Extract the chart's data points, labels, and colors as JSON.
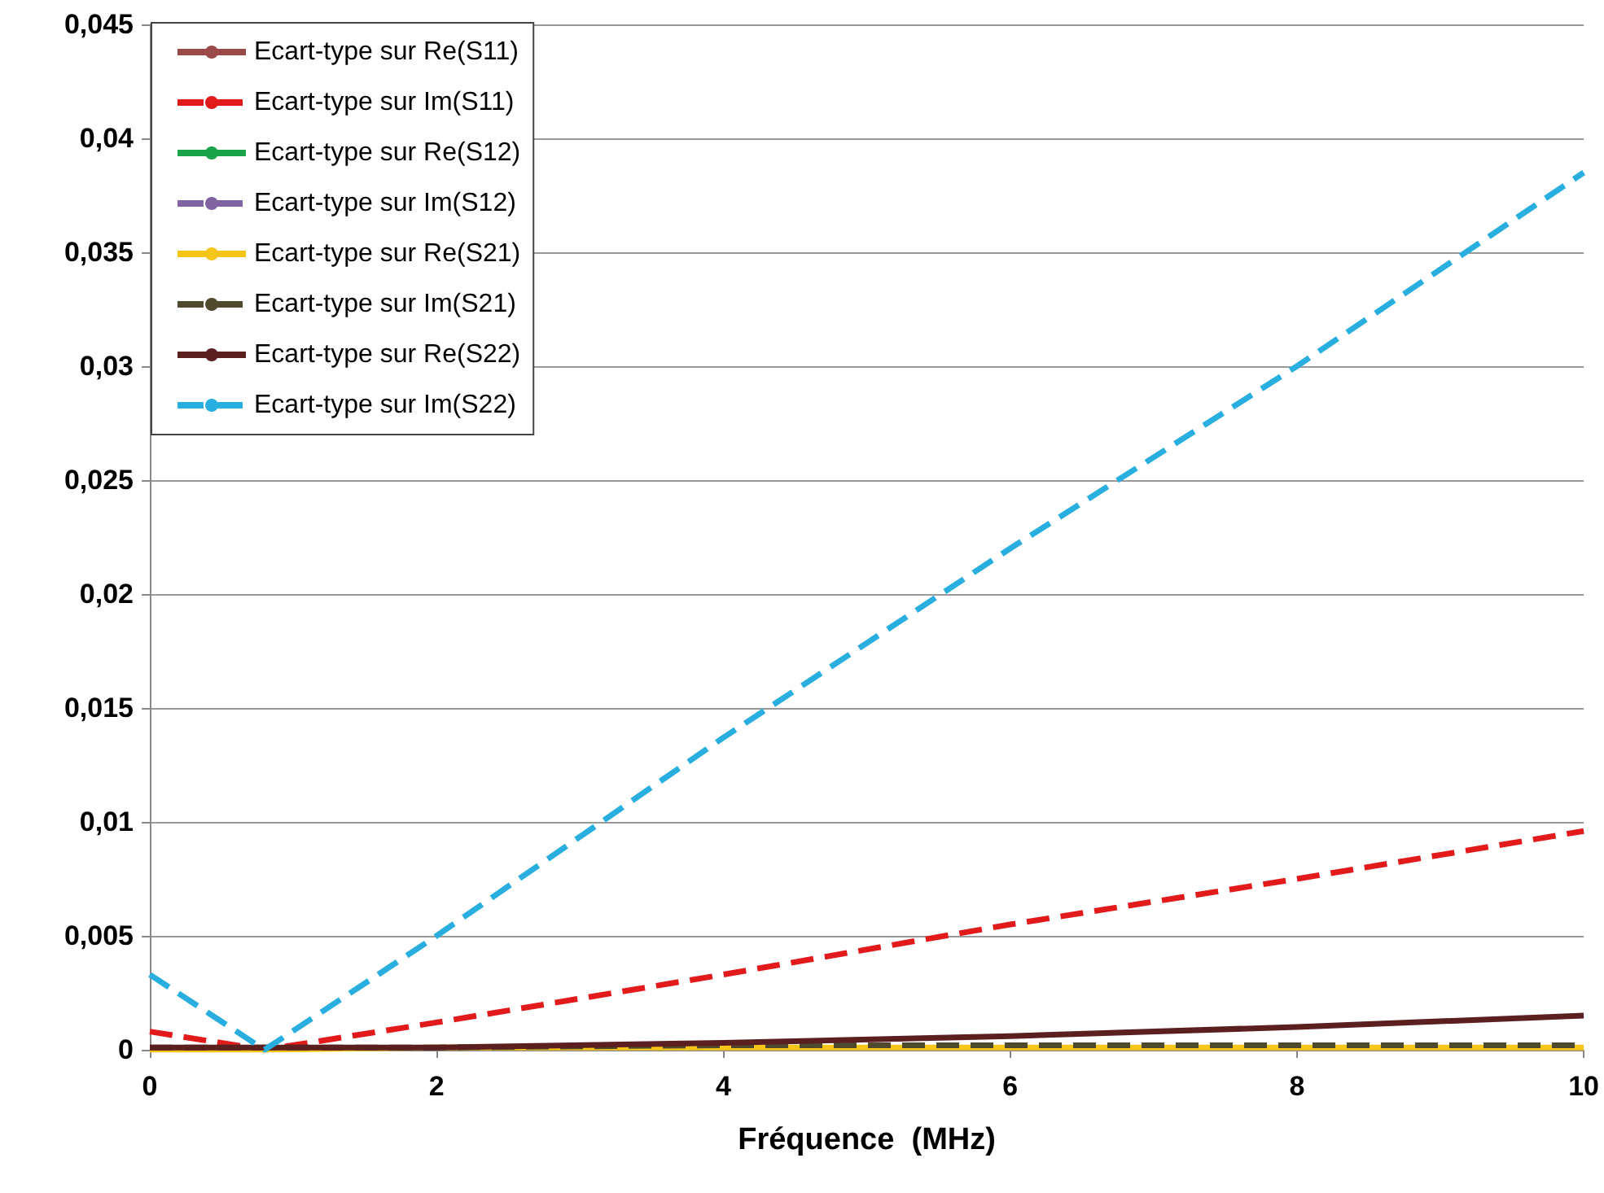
{
  "chart_data": {
    "type": "line",
    "xlabel": "Fréquence  (MHz)",
    "xlim": [
      0,
      10
    ],
    "xticks": [
      0,
      2,
      4,
      6,
      8,
      10
    ],
    "ylim": [
      0,
      0.045
    ],
    "yticks": [
      {
        "value": 0,
        "label": "0"
      },
      {
        "value": 0.005,
        "label": "0,005"
      },
      {
        "value": 0.01,
        "label": "0,01"
      },
      {
        "value": 0.015,
        "label": "0,015"
      },
      {
        "value": 0.02,
        "label": "0,02"
      },
      {
        "value": 0.025,
        "label": "0,025"
      },
      {
        "value": 0.03,
        "label": "0,03"
      },
      {
        "value": 0.035,
        "label": "0,035"
      },
      {
        "value": 0.04,
        "label": "0,04"
      },
      {
        "value": 0.045,
        "label": "0,045"
      }
    ],
    "grid": "y",
    "legend": "top left",
    "marker": "none",
    "x": [
      0,
      0.8,
      2,
      4,
      6,
      8,
      10
    ],
    "series": [
      {
        "name": "Ecart-type sur Re(S11)",
        "color": "#9b4a4a",
        "line_style": "solid",
        "values": [
          null,
          null,
          null,
          null,
          null,
          null,
          null
        ]
      },
      {
        "name": "Ecart-type sur Im(S11)",
        "color": "#e31a1c",
        "line_style": "dashed",
        "values": [
          0.0008,
          0,
          0.0012,
          0.0033,
          0.0055,
          0.0075,
          0.0096
        ]
      },
      {
        "name": "Ecart-type sur Re(S12)",
        "color": "#1aa34a",
        "line_style": "solid",
        "values": [
          null,
          null,
          null,
          null,
          null,
          null,
          null
        ]
      },
      {
        "name": "Ecart-type sur Im(S12)",
        "color": "#8064a2",
        "line_style": "dashed",
        "values": [
          null,
          null,
          null,
          null,
          null,
          null,
          null
        ]
      },
      {
        "name": "Ecart-type sur Re(S21)",
        "color": "#f5c518",
        "line_style": "solid",
        "values": [
          0,
          0,
          0.0001,
          0.0001,
          0.0001,
          0.0001,
          0.0001
        ]
      },
      {
        "name": "Ecart-type sur Im(S21)",
        "color": "#4f4a2e",
        "line_style": "dashed",
        "values": [
          0.0001,
          0.0001,
          0.0001,
          0.0002,
          0.0002,
          0.0002,
          0.0002
        ]
      },
      {
        "name": "Ecart-type sur Re(S22)",
        "color": "#5c1f1f",
        "line_style": "solid",
        "values": [
          0.0001,
          0.0001,
          0.0001,
          0.0003,
          0.0006,
          0.001,
          0.0015
        ]
      },
      {
        "name": "Ecart-type sur Im(S22)",
        "color": "#29aee0",
        "line_style": "dashed",
        "values": [
          0.0033,
          0,
          0.005,
          0.0137,
          0.022,
          0.03,
          0.0385
        ]
      }
    ]
  }
}
